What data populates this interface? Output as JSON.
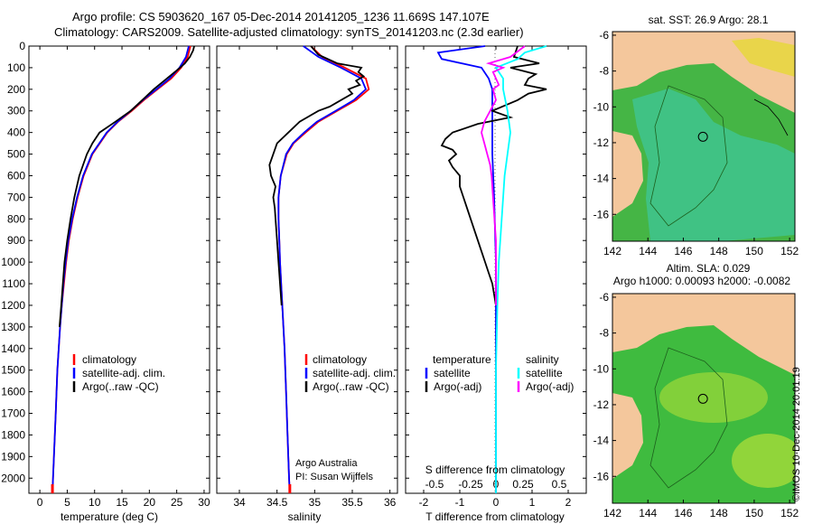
{
  "header": {
    "title_line1": "Argo profile: CS 5903620_167 05-Dec-2014 20141205_1236 11.669S 147.107E",
    "title_line2": "Climatology: CARS2009. Satellite-adjusted climatology: synTS_20141203.nc (2.3d earlier)"
  },
  "stamp": "©IMOS 10-Dec-2014 20:01:19",
  "colors": {
    "climatology": "#ff0000",
    "satellite": "#0000ff",
    "argo": "#000000",
    "s_satellite": "#00ffff",
    "s_argo": "#ff00ff",
    "land": "#f4c79c",
    "ocean": "#3cc83c"
  },
  "chart_data": [
    {
      "type": "line",
      "name": "temperature",
      "xlabel": "temperature (deg C)",
      "ylabel": "",
      "xlim": [
        -2,
        31
      ],
      "ylim": [
        2070,
        0
      ],
      "x_ticks": [
        0,
        5,
        10,
        15,
        20,
        25,
        30
      ],
      "y_ticks": [
        0,
        100,
        200,
        300,
        400,
        500,
        600,
        700,
        800,
        900,
        1000,
        1100,
        1200,
        1300,
        1400,
        1500,
        1600,
        1700,
        1800,
        1900,
        2000
      ],
      "legend": [
        "climatology",
        "satellite-adj. clim.",
        "Argo(..raw -QC)"
      ],
      "series": [
        {
          "name": "climatology",
          "depth": [
            0,
            50,
            100,
            150,
            200,
            250,
            300,
            350,
            400,
            500,
            600,
            700,
            800,
            900,
            1000,
            1100,
            1200,
            1300,
            1500,
            1700,
            2000,
            2070
          ],
          "values": [
            27.5,
            27.0,
            25.8,
            24.0,
            21.5,
            19.0,
            16.8,
            14.3,
            12.3,
            9.6,
            8.0,
            6.9,
            6.0,
            5.3,
            4.8,
            4.4,
            4.0,
            3.7,
            3.2,
            2.9,
            2.4,
            2.3
          ]
        },
        {
          "name": "satellite-adj. clim.",
          "depth": [
            0,
            50,
            100,
            150,
            200,
            250,
            300,
            350,
            400,
            500,
            600,
            700,
            800,
            900,
            1000,
            1100,
            1200,
            1300,
            1500,
            1700,
            2000,
            2070
          ],
          "values": [
            27.2,
            26.7,
            25.5,
            23.7,
            21.3,
            18.8,
            16.6,
            14.2,
            12.2,
            9.5,
            7.9,
            6.8,
            5.9,
            5.2,
            4.7,
            4.3,
            4.0,
            3.7,
            3.2,
            2.9,
            2.4,
            2.3
          ]
        },
        {
          "name": "Argo(..raw -QC)",
          "depth": [
            0,
            20,
            50,
            80,
            100,
            150,
            200,
            250,
            300,
            350,
            400,
            450,
            500,
            550,
            600,
            700,
            800,
            900,
            1000,
            1100,
            1200,
            1300
          ],
          "values": [
            28.2,
            28.0,
            27.4,
            26.5,
            25.6,
            23.2,
            20.8,
            18.7,
            16.6,
            13.8,
            10.9,
            9.6,
            8.6,
            7.9,
            7.2,
            6.3,
            5.6,
            5.0,
            4.5,
            4.2,
            3.9,
            3.6
          ]
        }
      ]
    },
    {
      "type": "line",
      "name": "salinity",
      "xlabel": "salinity",
      "xlim": [
        33.7,
        36.1
      ],
      "ylim": [
        2070,
        0
      ],
      "x_ticks": [
        34,
        34.5,
        35,
        35.5,
        36
      ],
      "legend": [
        "climatology",
        "satellite-adj. clim.",
        "Argo(..raw -QC)"
      ],
      "annotation": [
        "Argo Australia",
        "PI: Susan Wijffels"
      ],
      "series": [
        {
          "name": "climatology",
          "depth": [
            0,
            50,
            100,
            150,
            200,
            250,
            300,
            350,
            400,
            450,
            500,
            600,
            700,
            800,
            900,
            1000,
            1200,
            1400,
            1600,
            1800,
            2000,
            2070
          ],
          "values": [
            34.95,
            35.1,
            35.4,
            35.68,
            35.72,
            35.55,
            35.3,
            35.05,
            34.88,
            34.72,
            34.63,
            34.55,
            34.52,
            34.52,
            34.53,
            34.54,
            34.57,
            34.6,
            34.62,
            34.64,
            34.66,
            34.67
          ]
        },
        {
          "name": "satellite-adj. clim.",
          "depth": [
            0,
            50,
            100,
            150,
            200,
            250,
            300,
            350,
            400,
            450,
            500,
            600,
            700,
            800,
            900,
            1000,
            1200,
            1400,
            1600,
            1800,
            2000,
            2070
          ],
          "values": [
            34.85,
            35.05,
            35.35,
            35.62,
            35.68,
            35.52,
            35.28,
            35.03,
            34.86,
            34.71,
            34.62,
            34.55,
            34.52,
            34.52,
            34.53,
            34.54,
            34.57,
            34.6,
            34.62,
            34.64,
            34.66,
            34.67
          ]
        },
        {
          "name": "Argo(..raw -QC)",
          "depth": [
            0,
            40,
            80,
            100,
            120,
            140,
            160,
            180,
            200,
            220,
            250,
            280,
            300,
            350,
            400,
            450,
            500,
            550,
            600,
            650,
            700,
            750,
            800,
            900,
            1000,
            1100,
            1200
          ],
          "values": [
            34.95,
            35.05,
            35.3,
            35.62,
            35.58,
            35.65,
            35.55,
            35.6,
            35.45,
            35.5,
            35.35,
            35.2,
            35.05,
            34.8,
            34.65,
            34.5,
            34.45,
            34.4,
            34.42,
            34.48,
            34.45,
            34.47,
            34.48,
            34.5,
            34.52,
            34.54,
            34.56
          ]
        }
      ]
    },
    {
      "type": "line",
      "name": "difference",
      "xlabel": "T difference from climatology",
      "xlabel_top": "S difference from climatology",
      "xlim": [
        -2.5,
        2.5
      ],
      "ylim": [
        2070,
        0
      ],
      "x_ticks": [
        -2,
        -1,
        0,
        1,
        2
      ],
      "x_ticks_top": [
        -0.5,
        -0.25,
        0,
        0.25,
        0.5
      ],
      "legend_headers": [
        "temperature",
        "salinity"
      ],
      "legend": [
        "satellite",
        "Argo(-adj)",
        "satellite",
        "Argo(-adj)"
      ],
      "series": [
        {
          "name": "T satellite",
          "depth": [
            0,
            30,
            60,
            100,
            150,
            200,
            300,
            400,
            500,
            700,
            1000,
            1200,
            1500,
            2070
          ],
          "values": [
            -0.3,
            -1.6,
            -1.5,
            -0.4,
            -0.2,
            -0.1,
            -0.1,
            -0.1,
            -0.1,
            -0.05,
            0,
            0,
            0,
            0
          ]
        },
        {
          "name": "T Argo(-adj)",
          "depth": [
            0,
            50,
            80,
            100,
            130,
            150,
            180,
            200,
            220,
            250,
            300,
            330,
            360,
            400,
            430,
            460,
            480,
            500,
            530,
            560,
            600,
            650,
            700,
            750,
            800,
            850,
            900,
            950,
            1000,
            1050,
            1100,
            1150,
            1200
          ],
          "values": [
            0.6,
            0.5,
            1.2,
            0.4,
            1.1,
            0.9,
            0.8,
            1.4,
            0.9,
            0.6,
            -0.1,
            0.4,
            -0.5,
            -1.2,
            -1.4,
            -1.5,
            -1.2,
            -1.1,
            -1.3,
            -1.2,
            -1.0,
            -1.0,
            -0.9,
            -0.8,
            -0.7,
            -0.6,
            -0.5,
            -0.4,
            -0.3,
            -0.2,
            -0.1,
            -0.05,
            0
          ]
        },
        {
          "name": "S satellite",
          "depth": [
            0,
            30,
            60,
            100,
            150,
            200,
            300,
            400,
            500,
            600,
            700,
            800,
            1000,
            1200,
            1500,
            2070
          ],
          "values": [
            0.35,
            0.2,
            0.15,
            0.0,
            0.05,
            0.05,
            0.08,
            0.1,
            0.08,
            0.06,
            0.05,
            0.04,
            0.02,
            0.01,
            0,
            0
          ]
        },
        {
          "name": "S Argo(-adj)",
          "depth": [
            0,
            50,
            80,
            100,
            120,
            150,
            180,
            200,
            250,
            300,
            350,
            400,
            450,
            500,
            550,
            600,
            700,
            800,
            900,
            1000,
            1100,
            1200
          ],
          "values": [
            0.2,
            0.1,
            -0.05,
            0.05,
            -0.02,
            0.0,
            0.02,
            -0.02,
            0.0,
            -0.04,
            -0.08,
            -0.1,
            -0.08,
            -0.06,
            -0.04,
            -0.03,
            -0.02,
            -0.01,
            0,
            0,
            0,
            0
          ]
        }
      ]
    },
    {
      "type": "heatmap",
      "name": "sst-map",
      "title": "sat. SST: 26.9  Argo: 28.1",
      "x_ticks": [
        142,
        144,
        146,
        148,
        150,
        152
      ],
      "y_ticks": [
        -6,
        -8,
        -10,
        -12,
        -14,
        -16
      ],
      "xlim": [
        142,
        152.3
      ],
      "ylim": [
        -17.5,
        -5.8
      ],
      "float_position": [
        147.107,
        -11.669
      ]
    },
    {
      "type": "heatmap",
      "name": "sla-map",
      "title": "Altim. SLA: 0.029",
      "subtitle": "Argo h1000: 0.00093 h2000: -0.0082",
      "x_ticks": [
        142,
        144,
        146,
        148,
        150,
        152
      ],
      "y_ticks": [
        -6,
        -8,
        -10,
        -12,
        -14,
        -16
      ],
      "xlim": [
        142,
        152.3
      ],
      "ylim": [
        -17.5,
        -5.8
      ],
      "float_position": [
        147.107,
        -11.669
      ]
    }
  ]
}
